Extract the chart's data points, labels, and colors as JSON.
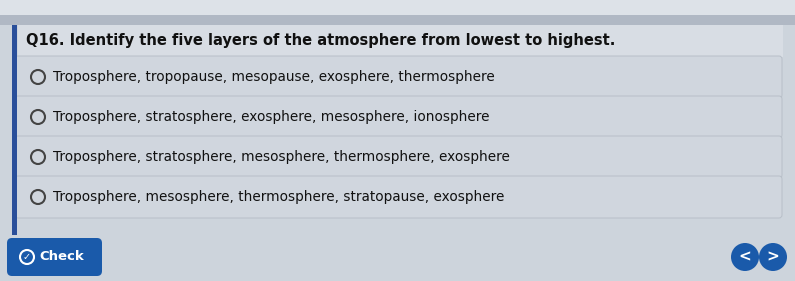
{
  "question": "Q16. Identify the five layers of the atmosphere from lowest to highest.",
  "options": [
    "Troposphere, tropopause, mesopause, exosphere, thermosphere",
    "Troposphere, stratosphere, exosphere, mesosphere, ionosphere",
    "Troposphere, stratosphere, mesosphere, thermosphere, exosphere",
    "Troposphere, mesosphere, thermosphere, stratopause, exosphere"
  ],
  "top_bg_color": "#c8cfd8",
  "main_bg_color": "#cdd4dc",
  "question_bg": "#d8dde4",
  "option_bg": "#d0d6de",
  "option_border": "#b8bfc8",
  "question_font_size": 10.5,
  "option_font_size": 9.8,
  "left_bar_color": "#2a4f9a",
  "button_color": "#1a5aaa",
  "button_text_color": "#ffffff",
  "check_text": "Check",
  "radio_color": "#444444",
  "text_color": "#111111",
  "top_strip_color": "#b8bfc8",
  "header_bg": "#e8ecf0"
}
